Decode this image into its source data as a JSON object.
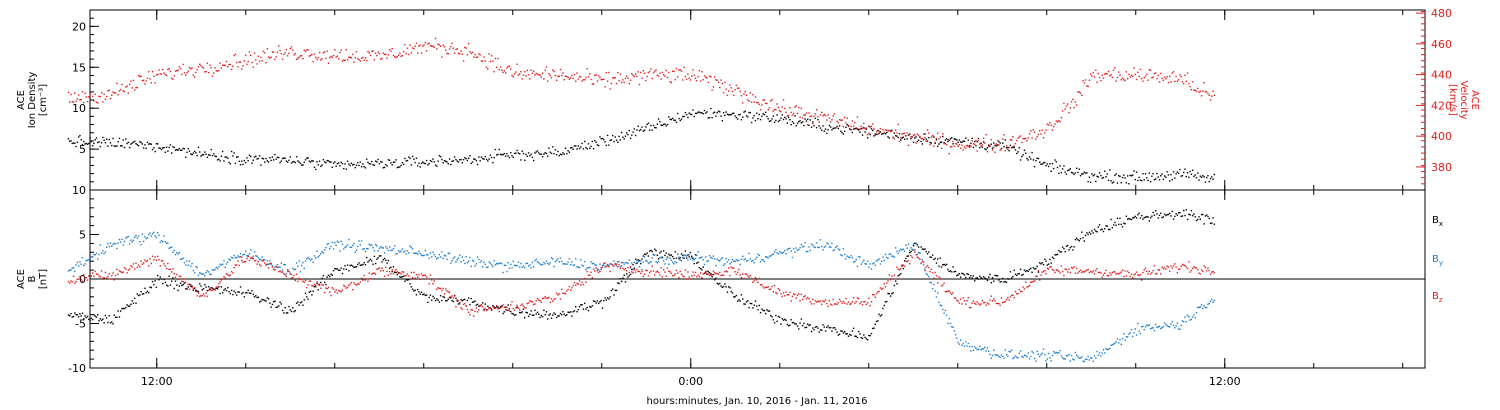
{
  "chart_data": [
    {
      "type": "scatter",
      "panel": "plasma",
      "ylabel": [
        "ACE",
        "Ion Density",
        "[cm⁻³]"
      ],
      "y2label": [
        "ACE",
        "Velocity",
        "[km/s]"
      ],
      "ylim": [
        0,
        22
      ],
      "y2lim": [
        365,
        482
      ],
      "yticks": [
        5,
        10,
        15,
        20
      ],
      "y2ticks": [
        380,
        400,
        420,
        440,
        460,
        480
      ],
      "series": [
        {
          "axis": "left",
          "color": "#000000",
          "trend": [
            [
              "2016-01-10 10:00",
              6.0
            ],
            [
              "2016-01-10 11:00",
              5.8
            ],
            [
              "2016-01-10 12:00",
              5.5
            ],
            [
              "2016-01-10 13:00",
              4.5
            ],
            [
              "2016-01-10 14:00",
              3.9
            ],
            [
              "2016-01-10 15:00",
              3.7
            ],
            [
              "2016-01-10 16:00",
              3.0
            ],
            [
              "2016-01-10 17:00",
              3.3
            ],
            [
              "2016-01-10 18:00",
              3.5
            ],
            [
              "2016-01-10 19:00",
              3.8
            ],
            [
              "2016-01-10 20:00",
              4.4
            ],
            [
              "2016-01-10 21:00",
              4.6
            ],
            [
              "2016-01-10 22:00",
              6.0
            ],
            [
              "2016-01-10 23:00",
              7.5
            ],
            [
              "2016-01-11 00:00",
              9.5
            ],
            [
              "2016-01-11 01:00",
              9.3
            ],
            [
              "2016-01-11 02:00",
              8.8
            ],
            [
              "2016-01-11 03:00",
              7.8
            ],
            [
              "2016-01-11 04:00",
              7.2
            ],
            [
              "2016-01-11 05:00",
              6.5
            ],
            [
              "2016-01-11 06:00",
              6.0
            ],
            [
              "2016-01-11 07:00",
              5.5
            ],
            [
              "2016-01-11 08:00",
              3.0
            ],
            [
              "2016-01-11 09:00",
              1.8
            ],
            [
              "2016-01-11 10:00",
              1.6
            ],
            [
              "2016-01-11 11:00",
              2.0
            ],
            [
              "2016-01-11 11:45",
              1.4
            ]
          ]
        },
        {
          "axis": "right",
          "color": "#e02020",
          "trend": [
            [
              "2016-01-10 10:00",
              425
            ],
            [
              "2016-01-10 11:00",
              428
            ],
            [
              "2016-01-10 12:00",
              440
            ],
            [
              "2016-01-10 13:00",
              445
            ],
            [
              "2016-01-10 14:00",
              450
            ],
            [
              "2016-01-10 15:00",
              455
            ],
            [
              "2016-01-10 16:00",
              453
            ],
            [
              "2016-01-10 17:00",
              452
            ],
            [
              "2016-01-10 18:00",
              459
            ],
            [
              "2016-01-10 19:00",
              456
            ],
            [
              "2016-01-10 20:00",
              441
            ],
            [
              "2016-01-10 21:00",
              440
            ],
            [
              "2016-01-10 22:00",
              436
            ],
            [
              "2016-01-10 23:00",
              440
            ],
            [
              "2016-01-11 00:00",
              440
            ],
            [
              "2016-01-11 01:00",
              430
            ],
            [
              "2016-01-11 02:00",
              418
            ],
            [
              "2016-01-11 03:00",
              412
            ],
            [
              "2016-01-11 04:00",
              405
            ],
            [
              "2016-01-11 05:00",
              400
            ],
            [
              "2016-01-11 06:00",
              395
            ],
            [
              "2016-01-11 07:00",
              395
            ],
            [
              "2016-01-11 08:00",
              405
            ],
            [
              "2016-01-11 08:40",
              425
            ],
            [
              "2016-01-11 09:00",
              440
            ],
            [
              "2016-01-11 10:00",
              440
            ],
            [
              "2016-01-11 11:00",
              438
            ],
            [
              "2016-01-11 11:45",
              425
            ]
          ]
        }
      ]
    },
    {
      "type": "scatter",
      "panel": "magnetic-field",
      "ylabel": [
        "ACE",
        "B",
        "[nT]"
      ],
      "ylim": [
        -10,
        10
      ],
      "yticks": [
        -10,
        -5,
        0,
        5,
        10
      ],
      "zero_line": true,
      "legend_position": "right",
      "series": [
        {
          "name": "Bx",
          "color": "#000000",
          "trend": [
            [
              "2016-01-10 10:00",
              -4.0
            ],
            [
              "2016-01-10 11:00",
              -4.5
            ],
            [
              "2016-01-10 12:00",
              0.0
            ],
            [
              "2016-01-10 13:00",
              -1.0
            ],
            [
              "2016-01-10 14:00",
              -1.5
            ],
            [
              "2016-01-10 15:00",
              -3.5
            ],
            [
              "2016-01-10 16:00",
              1.0
            ],
            [
              "2016-01-10 17:00",
              2.5
            ],
            [
              "2016-01-10 18:00",
              -2.0
            ],
            [
              "2016-01-10 19:00",
              -2.5
            ],
            [
              "2016-01-10 20:00",
              -3.5
            ],
            [
              "2016-01-10 21:00",
              -4.0
            ],
            [
              "2016-01-10 22:00",
              -2.5
            ],
            [
              "2016-01-10 23:00",
              3.0
            ],
            [
              "2016-01-11 00:00",
              2.5
            ],
            [
              "2016-01-11 01:00",
              -2.0
            ],
            [
              "2016-01-11 02:00",
              -4.5
            ],
            [
              "2016-01-11 03:00",
              -5.5
            ],
            [
              "2016-01-11 04:00",
              -6.5
            ],
            [
              "2016-01-11 05:00",
              4.0
            ],
            [
              "2016-01-11 06:00",
              0.5
            ],
            [
              "2016-01-11 07:00",
              0.0
            ],
            [
              "2016-01-11 08:00",
              2.0
            ],
            [
              "2016-01-11 09:00",
              5.5
            ],
            [
              "2016-01-11 10:00",
              7.0
            ],
            [
              "2016-01-11 11:00",
              7.5
            ],
            [
              "2016-01-11 11:45",
              6.5
            ]
          ]
        },
        {
          "name": "By",
          "color": "#1f7fd0",
          "trend": [
            [
              "2016-01-10 10:00",
              1.0
            ],
            [
              "2016-01-10 11:00",
              4.0
            ],
            [
              "2016-01-10 12:00",
              5.0
            ],
            [
              "2016-01-10 13:00",
              0.5
            ],
            [
              "2016-01-10 14:00",
              3.0
            ],
            [
              "2016-01-10 15:00",
              1.0
            ],
            [
              "2016-01-10 16:00",
              4.0
            ],
            [
              "2016-01-10 17:00",
              3.5
            ],
            [
              "2016-01-10 18:00",
              3.0
            ],
            [
              "2016-01-10 19:00",
              2.0
            ],
            [
              "2016-01-10 20:00",
              1.5
            ],
            [
              "2016-01-10 21:00",
              2.0
            ],
            [
              "2016-01-10 22:00",
              1.5
            ],
            [
              "2016-01-10 23:00",
              2.0
            ],
            [
              "2016-01-11 00:00",
              2.5
            ],
            [
              "2016-01-11 01:00",
              2.0
            ],
            [
              "2016-01-11 02:00",
              3.0
            ],
            [
              "2016-01-11 03:00",
              4.0
            ],
            [
              "2016-01-11 04:00",
              1.5
            ],
            [
              "2016-01-11 05:00",
              4.0
            ],
            [
              "2016-01-11 06:00",
              -7.0
            ],
            [
              "2016-01-11 07:00",
              -8.5
            ],
            [
              "2016-01-11 08:00",
              -8.5
            ],
            [
              "2016-01-11 09:00",
              -9.0
            ],
            [
              "2016-01-11 10:00",
              -5.5
            ],
            [
              "2016-01-11 11:00",
              -5.0
            ],
            [
              "2016-01-11 11:45",
              -2.0
            ]
          ]
        },
        {
          "name": "Bz",
          "color": "#e02020",
          "trend": [
            [
              "2016-01-10 10:00",
              0.0
            ],
            [
              "2016-01-10 11:00",
              0.5
            ],
            [
              "2016-01-10 12:00",
              2.5
            ],
            [
              "2016-01-10 13:00",
              -2.0
            ],
            [
              "2016-01-10 14:00",
              2.5
            ],
            [
              "2016-01-10 15:00",
              0.5
            ],
            [
              "2016-01-10 16:00",
              -1.5
            ],
            [
              "2016-01-10 17:00",
              1.0
            ],
            [
              "2016-01-10 18:00",
              0.5
            ],
            [
              "2016-01-10 19:00",
              -3.5
            ],
            [
              "2016-01-10 20:00",
              -3.0
            ],
            [
              "2016-01-10 21:00",
              -2.0
            ],
            [
              "2016-01-10 22:00",
              1.5
            ],
            [
              "2016-01-10 23:00",
              1.0
            ],
            [
              "2016-01-11 00:00",
              0.5
            ],
            [
              "2016-01-11 01:00",
              1.0
            ],
            [
              "2016-01-11 02:00",
              -1.5
            ],
            [
              "2016-01-11 03:00",
              -2.5
            ],
            [
              "2016-01-11 04:00",
              -2.5
            ],
            [
              "2016-01-11 05:00",
              3.0
            ],
            [
              "2016-01-11 06:00",
              -2.5
            ],
            [
              "2016-01-11 07:00",
              -2.5
            ],
            [
              "2016-01-11 08:00",
              1.0
            ],
            [
              "2016-01-11 09:00",
              1.0
            ],
            [
              "2016-01-11 10:00",
              0.5
            ],
            [
              "2016-01-11 11:00",
              1.5
            ],
            [
              "2016-01-11 11:45",
              1.0
            ]
          ]
        }
      ]
    }
  ],
  "x_axis": {
    "xlim": [
      "2016-01-10 10:30",
      "2016-01-11 16:30"
    ],
    "ticks": [
      {
        "at": "2016-01-10 12:00",
        "label": "12:00"
      },
      {
        "at": "2016-01-11 00:00",
        "label": "0:00"
      },
      {
        "at": "2016-01-11 12:00",
        "label": "12:00"
      }
    ],
    "minor_tick_hours": 2,
    "xlabel": "hours:minutes, Jan. 10, 2016 - Jan. 11, 2016"
  },
  "legend": [
    {
      "label": "B",
      "sub": "x",
      "color": "#000000"
    },
    {
      "label": "B",
      "sub": "y",
      "color": "#1f7fd0"
    },
    {
      "label": "B",
      "sub": "z",
      "color": "#e02020"
    }
  ],
  "axis_color": "#000000",
  "velocity_axis_color": "#e02020"
}
